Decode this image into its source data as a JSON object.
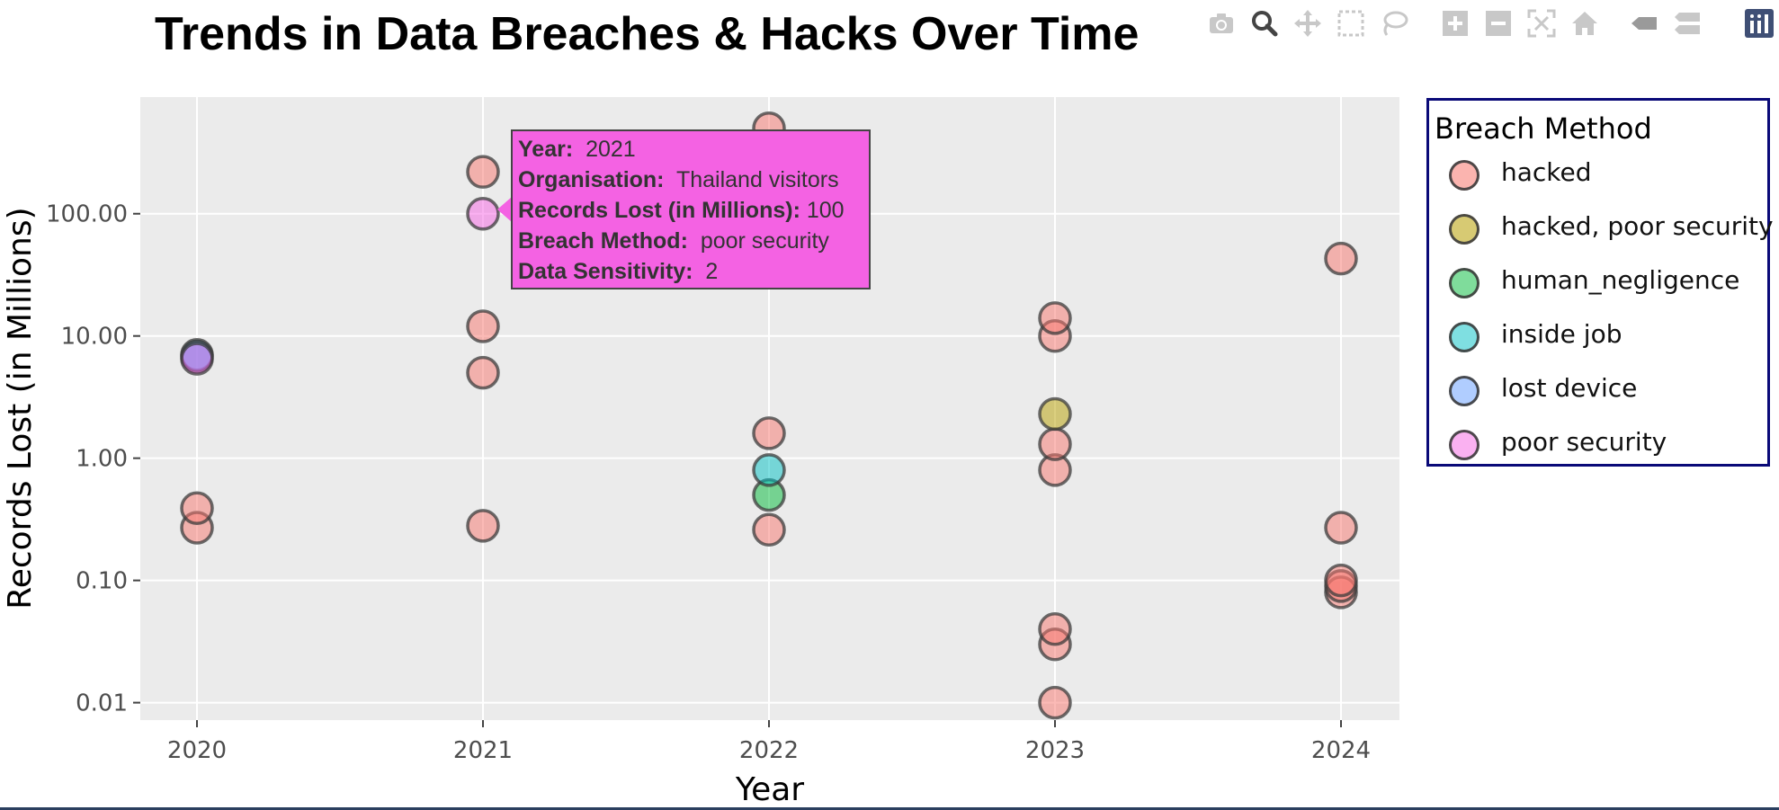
{
  "chart_data": {
    "type": "scatter",
    "title": "Trends in Data Breaches & Hacks Over Time",
    "xlabel": "Year",
    "ylabel": "Records Lost (in Millions)",
    "x_ticks": [
      "2020",
      "2021",
      "2022",
      "2023",
      "2024"
    ],
    "y_scale": "log",
    "ylim": [
      0.0072,
      900
    ],
    "y_ticks": [
      {
        "value": 0.01,
        "label": "0.01"
      },
      {
        "value": 0.1,
        "label": "0.10"
      },
      {
        "value": 1,
        "label": "1.00"
      },
      {
        "value": 10,
        "label": "10.00"
      },
      {
        "value": 100,
        "label": "100.00"
      }
    ],
    "grid": true,
    "legend": {
      "title": "Breach Method",
      "placement": "right"
    },
    "series": [
      {
        "name": "hacked",
        "color": "#f8766d",
        "points": [
          {
            "x": 2020,
            "y": 0.27
          },
          {
            "x": 2020,
            "y": 0.39
          },
          {
            "x": 2021,
            "y": 0.28
          },
          {
            "x": 2021,
            "y": 5
          },
          {
            "x": 2021,
            "y": 12
          },
          {
            "x": 2021,
            "y": 220
          },
          {
            "x": 2022,
            "y": 0.26
          },
          {
            "x": 2022,
            "y": 1.6
          },
          {
            "x": 2022,
            "y": 500
          },
          {
            "x": 2023,
            "y": 0.01
          },
          {
            "x": 2023,
            "y": 0.03
          },
          {
            "x": 2023,
            "y": 0.04
          },
          {
            "x": 2023,
            "y": 0.8
          },
          {
            "x": 2023,
            "y": 1.3
          },
          {
            "x": 2023,
            "y": 10
          },
          {
            "x": 2023,
            "y": 14
          },
          {
            "x": 2024,
            "y": 0.08
          },
          {
            "x": 2024,
            "y": 0.09
          },
          {
            "x": 2024,
            "y": 0.1
          },
          {
            "x": 2024,
            "y": 0.27
          },
          {
            "x": 2024,
            "y": 43
          }
        ]
      },
      {
        "name": "hacked, poor security",
        "color": "#b79f00",
        "points": [
          {
            "x": 2023,
            "y": 2.3
          }
        ]
      },
      {
        "name": "human_negligence",
        "color": "#00ba38",
        "points": [
          {
            "x": 2022,
            "y": 0.5
          }
        ]
      },
      {
        "name": "inside job",
        "color": "#00bfc4",
        "points": [
          {
            "x": 2020,
            "y": 7
          },
          {
            "x": 2022,
            "y": 0.8
          }
        ]
      },
      {
        "name": "lost device",
        "color": "#619cff",
        "points": [
          {
            "x": 2020,
            "y": 6.8
          }
        ]
      },
      {
        "name": "poor security",
        "color": "#f564e3",
        "points": [
          {
            "x": 2020,
            "y": 6.5
          },
          {
            "x": 2021,
            "y": 100
          }
        ]
      }
    ]
  },
  "tooltip": {
    "year_key": "Year:",
    "year_val": "2021",
    "org_key": "Organisation:",
    "org_val": "Thailand visitors",
    "records_key": "Records Lost (in Millions):",
    "records_val": "100",
    "method_key": "Breach Method:",
    "method_val": "poor security",
    "sensitivity_key": "Data Sensitivity:",
    "sensitivity_val": "2"
  },
  "modebar": {
    "icons": [
      "camera-icon",
      "zoom-icon",
      "pan-icon",
      "box-select-icon",
      "lasso-select-icon",
      "zoom-in-icon",
      "zoom-out-icon",
      "autoscale-icon",
      "reset-axes-icon",
      "spike-lines-icon",
      "compare-hover-icon",
      "plotly-logo-icon"
    ]
  }
}
